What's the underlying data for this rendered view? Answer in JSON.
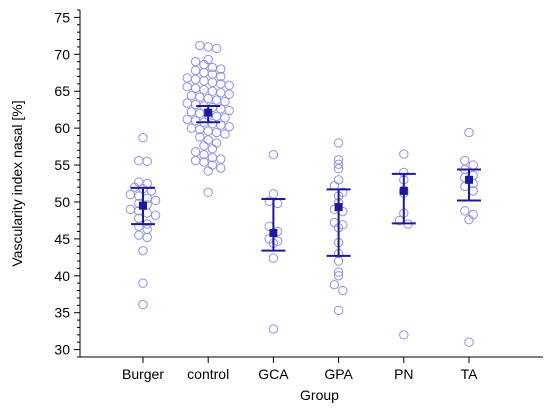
{
  "chart_data": {
    "type": "scatter",
    "title": "",
    "xlabel": "Group",
    "ylabel": "Vascularity index nasal [%]",
    "ylim": [
      29,
      76
    ],
    "yticks": [
      30,
      35,
      40,
      45,
      50,
      55,
      60,
      65,
      70,
      75
    ],
    "grid": false,
    "legend": "none",
    "colors": {
      "points": "#8f8fe8",
      "summary": "#1a1aa0",
      "axis": "#000000"
    },
    "categories": [
      "Burger",
      "control",
      "GCA",
      "GPA",
      "PN",
      "TA"
    ],
    "groups": [
      {
        "name": "Burger",
        "points": [
          58.7,
          55.6,
          55.5,
          52.7,
          52.5,
          52.0,
          51.8,
          51.5,
          51.0,
          50.8,
          50.5,
          50.2,
          49.8,
          49.6,
          49.0,
          48.8,
          48.5,
          48.2,
          47.8,
          47.0,
          46.7,
          46.3,
          45.5,
          45.2,
          43.4,
          39.0,
          36.1
        ],
        "mean": 49.5,
        "ci_low": 47.0,
        "ci_high": 51.9
      },
      {
        "name": "control",
        "points": [
          71.2,
          71.0,
          70.8,
          69.3,
          69.0,
          68.6,
          68.2,
          68.0,
          67.8,
          67.5,
          67.3,
          67.0,
          66.8,
          66.6,
          66.4,
          66.2,
          66.0,
          65.8,
          65.6,
          65.4,
          65.2,
          65.0,
          64.8,
          64.6,
          64.4,
          64.2,
          64.0,
          63.8,
          63.6,
          63.4,
          63.2,
          63.0,
          62.8,
          62.6,
          62.4,
          62.2,
          62.0,
          61.8,
          61.6,
          61.4,
          61.2,
          61.0,
          60.8,
          60.6,
          60.4,
          60.2,
          60.0,
          59.8,
          59.6,
          59.4,
          59.2,
          58.8,
          58.4,
          58.0,
          57.6,
          57.2,
          56.8,
          56.4,
          56.0,
          55.8,
          55.6,
          55.4,
          55.0,
          54.6,
          54.2,
          51.3
        ],
        "mean": 62.1,
        "ci_low": 60.8,
        "ci_high": 63.0
      },
      {
        "name": "GCA",
        "points": [
          56.4,
          51.1,
          50.1,
          49.8,
          46.7,
          46.0,
          45.0,
          44.7,
          44.4,
          42.4,
          32.8
        ],
        "mean": 45.8,
        "ci_low": 43.4,
        "ci_high": 50.4
      },
      {
        "name": "GPA",
        "points": [
          58.0,
          55.7,
          55.1,
          54.5,
          53.0,
          52.2,
          51.3,
          50.8,
          49.9,
          49.0,
          48.7,
          47.2,
          46.9,
          46.5,
          44.5,
          43.0,
          42.0,
          40.5,
          40.0,
          38.8,
          38.0,
          35.3
        ],
        "mean": 49.3,
        "ci_low": 42.7,
        "ci_high": 51.7
      },
      {
        "name": "PN",
        "points": [
          56.5,
          54.0,
          53.0,
          51.6,
          51.2,
          48.5,
          47.5,
          47.0,
          32.0
        ],
        "mean": 51.5,
        "ci_low": 47.1,
        "ci_high": 53.8
      },
      {
        "name": "TA",
        "points": [
          59.4,
          55.6,
          55.0,
          54.4,
          53.6,
          53.3,
          52.5,
          52.1,
          51.5,
          48.8,
          48.3,
          47.6,
          31.0
        ],
        "mean": 53.0,
        "ci_low": 50.2,
        "ci_high": 54.4
      }
    ]
  }
}
